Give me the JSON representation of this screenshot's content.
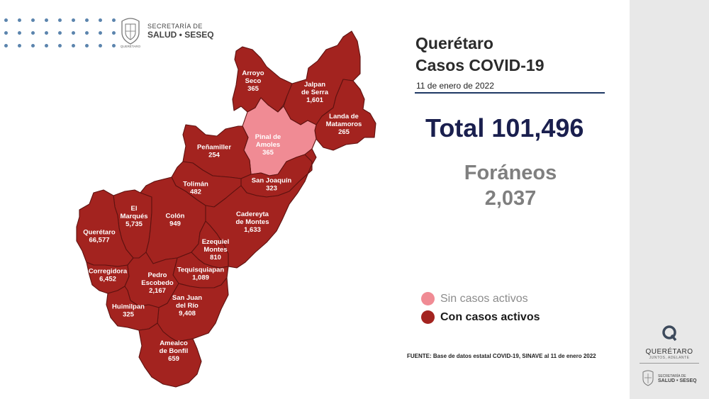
{
  "header": {
    "logo_line1": "SECRETARÍA DE",
    "logo_line2": "SALUD • SESEQ",
    "seal_caption": "QUERÉTARO"
  },
  "title_line1": "Querétaro",
  "title_line2": "Casos COVID-19",
  "date": "11 de enero de 2022",
  "total": "Total 101,496",
  "foraneos_label": "Foráneos",
  "foraneos_value": "2,037",
  "legend": {
    "sin_casos": "Sin casos activos",
    "con_casos": "Con casos activos"
  },
  "source": "FUENTE: Base de datos estatal COVID-19, SINAVE al 11 de enero 2022",
  "sidebar": {
    "brand_name": "QUERÉTARO",
    "brand_tag": "JUNTOS, ADELANTE",
    "logo_line1": "SECRETARÍA DE",
    "logo_line2": "SALUD • SESEQ"
  },
  "colors": {
    "active": "#a3231f",
    "inactive": "#f08b94",
    "title": "#2b2b2b",
    "total": "#1a1f4e",
    "foraneos": "#7f7f7f",
    "legend_inactive_text": "#8c8c8c",
    "legend_active_text": "#1a1a1a"
  },
  "municipalities": [
    {
      "id": "arroyo-seco",
      "name": "Arroyo Seco",
      "lines": [
        "Arroyo",
        "Seco"
      ],
      "cases": "365",
      "active": true
    },
    {
      "id": "jalpan",
      "name": "Jalpan de Serra",
      "lines": [
        "Jalpan",
        "de Serra"
      ],
      "cases": "1,601",
      "active": true
    },
    {
      "id": "landa",
      "name": "Landa de Matamoros",
      "lines": [
        "Landa de",
        "Matamoros"
      ],
      "cases": "265",
      "active": true
    },
    {
      "id": "pinal",
      "name": "Pinal de Amoles",
      "lines": [
        "Pinal de",
        "Amoles"
      ],
      "cases": "365",
      "active": false
    },
    {
      "id": "penamiller",
      "name": "Peñamiller",
      "lines": [
        "Peñamiller"
      ],
      "cases": "254",
      "active": true
    },
    {
      "id": "san-joaquin",
      "name": "San Joaquín",
      "lines": [
        "San Joaquín"
      ],
      "cases": "323",
      "active": true
    },
    {
      "id": "toliman",
      "name": "Tolimán",
      "lines": [
        "Tolimán"
      ],
      "cases": "482",
      "active": true
    },
    {
      "id": "el-marques",
      "name": "El Marqués",
      "lines": [
        "El",
        "Marqués"
      ],
      "cases": "5,735",
      "active": true
    },
    {
      "id": "colon",
      "name": "Colón",
      "lines": [
        "Colón"
      ],
      "cases": "949",
      "active": true
    },
    {
      "id": "cadereyta",
      "name": "Cadereyta de Montes",
      "lines": [
        "Cadereyta",
        "de Montes"
      ],
      "cases": "1,633",
      "active": true
    },
    {
      "id": "queretaro",
      "name": "Querétaro",
      "lines": [
        "Querétaro"
      ],
      "cases": "66,577",
      "active": true
    },
    {
      "id": "ezequiel",
      "name": "Ezequiel Montes",
      "lines": [
        "Ezequiel",
        "Montes"
      ],
      "cases": "810",
      "active": true
    },
    {
      "id": "corregidora",
      "name": "Corregidora",
      "lines": [
        "Corregidora"
      ],
      "cases": "6,452",
      "active": true
    },
    {
      "id": "tequisquiapan",
      "name": "Tequisquiapan",
      "lines": [
        "Tequisquiapan"
      ],
      "cases": "1,089",
      "active": true
    },
    {
      "id": "pedro-escobedo",
      "name": "Pedro Escobedo",
      "lines": [
        "Pedro",
        "Escobedo"
      ],
      "cases": "2,167",
      "active": true
    },
    {
      "id": "san-juan",
      "name": "San Juan del Río",
      "lines": [
        "San Juan",
        "del Río"
      ],
      "cases": "9,408",
      "active": true
    },
    {
      "id": "huimilpan",
      "name": "Huimilpan",
      "lines": [
        "Huimilpan"
      ],
      "cases": "325",
      "active": true
    },
    {
      "id": "amealco",
      "name": "Amealco de Bonfil",
      "lines": [
        "Amealco",
        "de Bonfil"
      ],
      "cases": "659",
      "active": true
    }
  ]
}
